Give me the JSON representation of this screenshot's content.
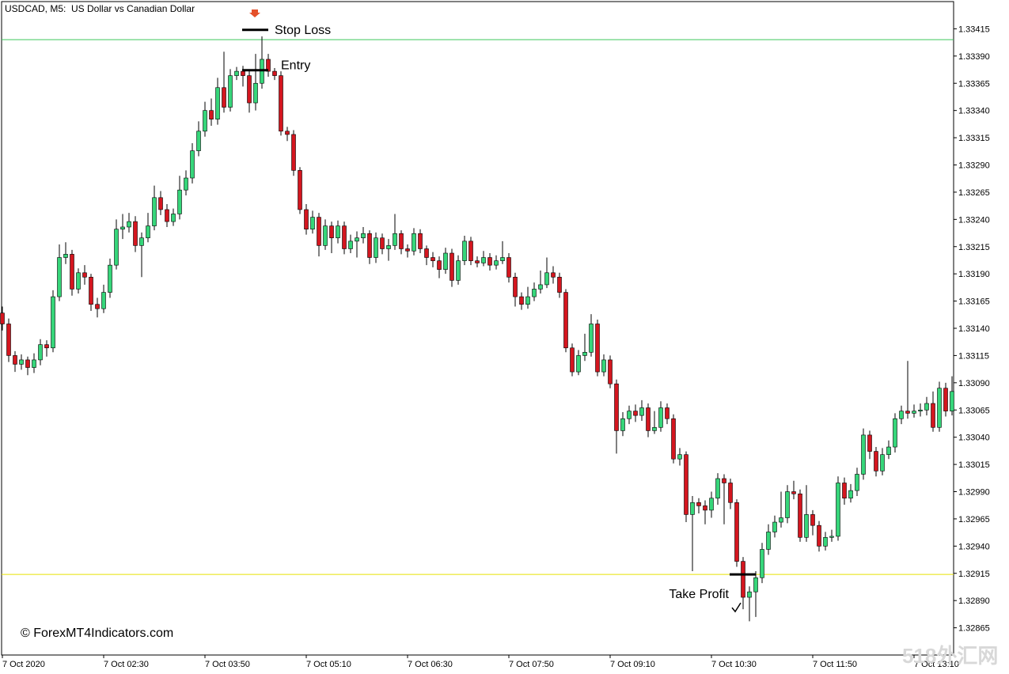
{
  "chart_data": {
    "type": "candlestick",
    "title": "USDCAD, M5:  US Dollar vs Canadian Dollar",
    "credit": "© ForexMT4Indicators.com",
    "watermark": "518外汇网",
    "up_color": "#36d67a",
    "down_color": "#d4161f",
    "grid": false,
    "ylim": [
      1.3284,
      1.3344
    ],
    "yticks": [
      1.33415,
      {
        "value": 1.3339,
        "label": "1.33390"
      },
      1.33365,
      {
        "value": 1.3334,
        "label": "1.33340"
      },
      1.33315,
      {
        "value": 1.3329,
        "label": "1.33290"
      },
      1.33265,
      {
        "value": 1.3324,
        "label": "1.33240"
      },
      1.33215,
      {
        "value": 1.3319,
        "label": "1.33190"
      },
      1.33165,
      {
        "value": 1.3314,
        "label": "1.33140"
      },
      1.33115,
      {
        "value": 1.3309,
        "label": "1.33090"
      },
      1.33065,
      {
        "value": 1.3304,
        "label": "1.33040"
      },
      1.33015,
      {
        "value": 1.3299,
        "label": "1.32990"
      },
      1.32965,
      {
        "value": 1.3294,
        "label": "1.32940"
      },
      1.32915,
      {
        "value": 1.3289,
        "label": "1.32890"
      },
      1.32865
    ],
    "categories": [
      "7 Oct 2020",
      null,
      null,
      null,
      null,
      null,
      null,
      null,
      null,
      null,
      null,
      null,
      null,
      null,
      null,
      null,
      "7 Oct 02:30",
      null,
      null,
      null,
      null,
      null,
      null,
      null,
      null,
      null,
      null,
      null,
      null,
      null,
      null,
      null,
      "7 Oct 03:50",
      null,
      null,
      null,
      null,
      null,
      null,
      null,
      null,
      null,
      null,
      null,
      null,
      null,
      null,
      null,
      "7 Oct 05:10",
      null,
      null,
      null,
      null,
      null,
      null,
      null,
      null,
      null,
      null,
      null,
      null,
      null,
      null,
      null,
      "7 Oct 06:30",
      null,
      null,
      null,
      null,
      null,
      null,
      null,
      null,
      null,
      null,
      null,
      null,
      null,
      null,
      null,
      "7 Oct 07:50",
      null,
      null,
      null,
      null,
      null,
      null,
      null,
      null,
      null,
      null,
      null,
      null,
      null,
      null,
      null,
      "7 Oct 09:10",
      null,
      null,
      null,
      null,
      null,
      null,
      null,
      null,
      null,
      null,
      null,
      null,
      null,
      null,
      null,
      "7 Oct 10:30",
      null,
      null,
      null,
      null,
      null,
      null,
      null,
      null,
      null,
      null,
      null,
      null,
      null,
      null,
      null,
      "7 Oct 11:50",
      null,
      null,
      null,
      null,
      null,
      null,
      null,
      null,
      null,
      null,
      null,
      null,
      null,
      null,
      null,
      "7 Oct 13:10",
      null,
      null,
      null,
      null,
      null,
      null
    ],
    "open": [
      1.33154,
      1.33144,
      1.33115,
      1.33107,
      1.33111,
      1.33104,
      1.33111,
      1.33125,
      1.33122,
      1.33169,
      1.33205,
      1.33208,
      1.33176,
      1.33191,
      1.33187,
      1.33162,
      1.33158,
      1.33173,
      1.33198,
      1.33231,
      1.33233,
      1.33238,
      1.33216,
      1.33223,
      1.33234,
      1.3326,
      1.33249,
      1.33238,
      1.33245,
      1.33267,
      1.33278,
      1.33303,
      1.33321,
      1.3334,
      1.33332,
      1.33361,
      1.33343,
      1.33372,
      1.33376,
      1.33372,
      1.33347,
      1.33365,
      1.33387,
      1.33376,
      1.33372,
      1.33321,
      1.33318,
      1.33285,
      1.33249,
      1.33231,
      1.33242,
      1.33216,
      1.33234,
      1.33223,
      1.33234,
      1.33213,
      1.3322,
      1.33223,
      1.33227,
      1.33205,
      1.33223,
      1.33213,
      1.33216,
      1.33227,
      1.33213,
      1.33211,
      1.33227,
      1.33213,
      1.33205,
      1.33202,
      1.33194,
      1.33209,
      1.33184,
      1.33202,
      1.3322,
      1.33202,
      1.332,
      1.33205,
      1.33198,
      1.33202,
      1.33205,
      1.33187,
      1.33169,
      1.33162,
      1.33169,
      1.33176,
      1.3318,
      1.33191,
      1.33187,
      1.33173,
      1.33122,
      1.331,
      1.33115,
      1.33118,
      1.33144,
      1.331,
      1.33111,
      1.33089,
      1.33046,
      1.33057,
      1.33064,
      1.3306,
      1.33067,
      1.33046,
      1.33049,
      1.33067,
      1.33057,
      1.3302,
      1.33024,
      1.32969,
      1.3298,
      1.32977,
      1.32973,
      1.32984,
      1.33002,
      1.32998,
      1.3298,
      1.32926,
      1.32893,
      1.32898,
      1.32911,
      1.32937,
      1.32953,
      1.32962,
      1.32966,
      1.3299,
      1.32988,
      1.32948,
      1.32969,
      1.32959,
      1.3294,
      1.32948,
      1.32949,
      1.32998,
      1.32984,
      1.32991,
      1.33006,
      1.33042,
      1.33027,
      1.33009,
      1.33024,
      1.33031,
      1.33057,
      1.33064,
      1.33062,
      1.33064,
      1.33065,
      1.33071,
      1.33049,
      1.33085,
      1.33064
    ],
    "high": [
      1.3316,
      1.33149,
      1.33119,
      1.33116,
      1.33114,
      1.33117,
      1.3313,
      1.33129,
      1.33175,
      1.33217,
      1.33219,
      1.33212,
      1.33195,
      1.33198,
      1.3319,
      1.33168,
      1.3318,
      1.33204,
      1.3324,
      1.33245,
      1.33246,
      1.33243,
      1.33228,
      1.33246,
      1.33271,
      1.33266,
      1.33254,
      1.3325,
      1.3328,
      1.33285,
      1.3331,
      1.3333,
      1.33348,
      1.33351,
      1.3337,
      1.33394,
      1.33378,
      1.3338,
      1.33381,
      1.33377,
      1.33392,
      1.33408,
      1.33392,
      1.33379,
      1.33376,
      1.33325,
      1.33322,
      1.33288,
      1.33254,
      1.33248,
      1.33246,
      1.3324,
      1.33238,
      1.33239,
      1.33238,
      1.33226,
      1.33229,
      1.33233,
      1.3323,
      1.33228,
      1.33227,
      1.33222,
      1.33245,
      1.3323,
      1.33217,
      1.33232,
      1.33231,
      1.33216,
      1.3321,
      1.33206,
      1.33214,
      1.33213,
      1.33207,
      1.33225,
      1.33224,
      1.33206,
      1.33211,
      1.33209,
      1.33207,
      1.3322,
      1.33209,
      1.33191,
      1.33173,
      1.33178,
      1.33182,
      1.33193,
      1.33205,
      1.33197,
      1.33191,
      1.33176,
      1.33126,
      1.3312,
      1.33135,
      1.33153,
      1.33148,
      1.33116,
      1.33115,
      1.33093,
      1.33063,
      1.33069,
      1.3307,
      1.33074,
      1.33071,
      1.33064,
      1.33073,
      1.33071,
      1.33061,
      1.3303,
      1.33027,
      1.32986,
      1.32984,
      1.32982,
      1.3299,
      1.33007,
      1.33006,
      1.33002,
      1.32983,
      1.3293,
      1.32903,
      1.32917,
      1.32943,
      1.3296,
      1.32968,
      1.3299,
      1.32996,
      1.33,
      1.32992,
      1.32996,
      1.32973,
      1.32963,
      1.32953,
      1.32955,
      1.33004,
      1.33003,
      1.32997,
      1.33012,
      1.33048,
      1.33046,
      1.33031,
      1.3303,
      1.33037,
      1.33062,
      1.33069,
      1.3311,
      1.3307,
      1.33071,
      1.33077,
      1.33082,
      1.33091,
      1.3309,
      1.33096
    ],
    "low": [
      1.33138,
      1.33109,
      1.331,
      1.33102,
      1.33097,
      1.33099,
      1.33106,
      1.33114,
      1.33118,
      1.33165,
      1.33199,
      1.3317,
      1.33172,
      1.3318,
      1.33156,
      1.3315,
      1.33154,
      1.33168,
      1.33194,
      1.33222,
      1.33228,
      1.3321,
      1.33187,
      1.33219,
      1.3323,
      1.33244,
      1.33233,
      1.33234,
      1.3324,
      1.33262,
      1.33273,
      1.33298,
      1.33316,
      1.33326,
      1.33327,
      1.33338,
      1.33339,
      1.33368,
      1.33362,
      1.33338,
      1.3334,
      1.3336,
      1.33371,
      1.33368,
      1.33317,
      1.33312,
      1.3328,
      1.33245,
      1.33226,
      1.33227,
      1.33206,
      1.33212,
      1.33209,
      1.33218,
      1.33208,
      1.33209,
      1.33205,
      1.33218,
      1.33199,
      1.332,
      1.33208,
      1.33202,
      1.33212,
      1.33208,
      1.33205,
      1.33207,
      1.33209,
      1.33198,
      1.33196,
      1.33186,
      1.3319,
      1.33178,
      1.3318,
      1.33198,
      1.33198,
      1.33196,
      1.33197,
      1.33193,
      1.33194,
      1.33199,
      1.33182,
      1.3316,
      1.33157,
      1.33158,
      1.33165,
      1.33172,
      1.33177,
      1.33181,
      1.33168,
      1.33118,
      1.33096,
      1.33097,
      1.3311,
      1.33114,
      1.33096,
      1.33096,
      1.33085,
      1.33025,
      1.33041,
      1.33052,
      1.33054,
      1.33055,
      1.3304,
      1.33043,
      1.33045,
      1.33052,
      1.33016,
      1.33014,
      1.32962,
      1.32917,
      1.3297,
      1.3296,
      1.32966,
      1.32978,
      1.3296,
      1.32974,
      1.32921,
      1.32882,
      1.32871,
      1.32875,
      1.32906,
      1.32932,
      1.32948,
      1.32957,
      1.32961,
      1.32983,
      1.32944,
      1.32944,
      1.3295,
      1.32935,
      1.32936,
      1.32944,
      1.32945,
      1.32978,
      1.3298,
      1.32986,
      1.33001,
      1.3302,
      1.33004,
      1.33005,
      1.3302,
      1.33026,
      1.33052,
      1.33057,
      1.33058,
      1.33059,
      1.3306,
      1.33045,
      1.33045,
      1.33059,
      1.3306
    ],
    "close": [
      1.33144,
      1.33115,
      1.33107,
      1.33111,
      1.33104,
      1.33111,
      1.33125,
      1.33122,
      1.33169,
      1.33205,
      1.33208,
      1.33176,
      1.33191,
      1.33187,
      1.33162,
      1.33158,
      1.33173,
      1.33198,
      1.33231,
      1.33233,
      1.33238,
      1.33216,
      1.33223,
      1.33234,
      1.3326,
      1.33249,
      1.33238,
      1.33245,
      1.33267,
      1.33278,
      1.33303,
      1.33321,
      1.3334,
      1.33332,
      1.33361,
      1.33343,
      1.33372,
      1.33376,
      1.33372,
      1.33347,
      1.33365,
      1.33387,
      1.33376,
      1.33372,
      1.33321,
      1.33318,
      1.33285,
      1.33249,
      1.33231,
      1.33242,
      1.33216,
      1.33234,
      1.33223,
      1.33234,
      1.33213,
      1.3322,
      1.33223,
      1.33227,
      1.33205,
      1.33223,
      1.33213,
      1.33216,
      1.33227,
      1.33213,
      1.33211,
      1.33227,
      1.33213,
      1.33205,
      1.33202,
      1.33194,
      1.33209,
      1.33184,
      1.33202,
      1.3322,
      1.33202,
      1.332,
      1.33205,
      1.33198,
      1.33202,
      1.33205,
      1.33187,
      1.33169,
      1.33162,
      1.33169,
      1.33176,
      1.3318,
      1.33191,
      1.33187,
      1.33173,
      1.33122,
      1.331,
      1.33115,
      1.33118,
      1.33144,
      1.331,
      1.33111,
      1.33089,
      1.33046,
      1.33057,
      1.33064,
      1.3306,
      1.33067,
      1.33046,
      1.33049,
      1.33067,
      1.33057,
      1.3302,
      1.33024,
      1.32969,
      1.3298,
      1.32977,
      1.32973,
      1.32984,
      1.33002,
      1.32998,
      1.3298,
      1.32926,
      1.32893,
      1.32898,
      1.32911,
      1.32937,
      1.32953,
      1.32962,
      1.32966,
      1.3299,
      1.32988,
      1.32948,
      1.32969,
      1.32959,
      1.3294,
      1.32948,
      1.32949,
      1.32998,
      1.32984,
      1.32991,
      1.33006,
      1.33042,
      1.33027,
      1.33009,
      1.33024,
      1.33031,
      1.33057,
      1.33064,
      1.33062,
      1.33064,
      1.33065,
      1.33071,
      1.33049,
      1.33085,
      1.33064,
      1.33082
    ],
    "hlines": [
      {
        "value": 1.33405,
        "color": "#3cc85a"
      },
      {
        "value": 1.32914,
        "color": "#e8e000"
      }
    ],
    "annotations": [
      {
        "text": "Stop Loss",
        "value": 1.33414,
        "index": 40
      },
      {
        "text": "Entry",
        "value": 1.33377,
        "index": 40
      },
      {
        "text": "Take Profit",
        "value": 1.32914,
        "index": 117
      }
    ]
  }
}
